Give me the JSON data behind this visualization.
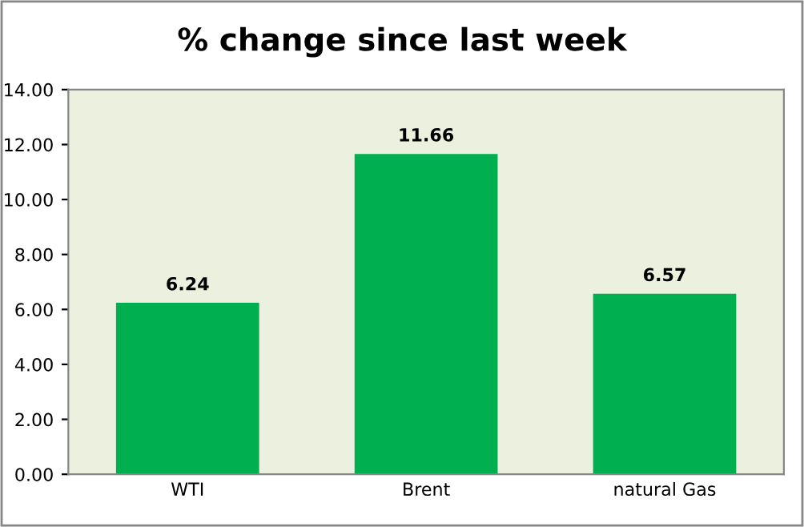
{
  "chart_data": {
    "type": "bar",
    "title": "% change since last week",
    "categories": [
      "WTI",
      "Brent",
      "natural Gas"
    ],
    "values": [
      6.24,
      11.66,
      6.57
    ],
    "color": "#00b050",
    "ylim": [
      0,
      14
    ],
    "yticks": [
      {
        "value": 0,
        "label": "0.00"
      },
      {
        "value": 2,
        "label": "2.00"
      },
      {
        "value": 4,
        "label": "4.00"
      },
      {
        "value": 6,
        "label": "6.00"
      },
      {
        "value": 8,
        "label": "8.00"
      },
      {
        "value": 10,
        "label": "10.00"
      },
      {
        "value": 12,
        "label": "12.00"
      },
      {
        "value": 14,
        "label": "14.00"
      }
    ],
    "data_labels": true,
    "grid": false,
    "legend": false
  }
}
